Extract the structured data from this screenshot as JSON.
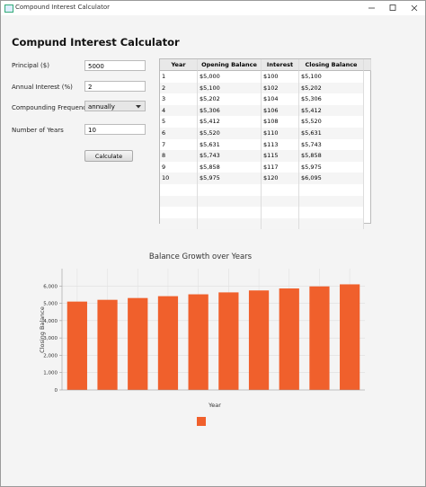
{
  "window": {
    "title": "Compound Interest Calculator"
  },
  "heading": "Compund Interest Calculator",
  "form": {
    "principal": {
      "label": "Principal ($)",
      "value": "5000"
    },
    "interest": {
      "label": "Annual Interest (%)",
      "value": "2"
    },
    "frequency": {
      "label": "Compounding Frequency:",
      "value": "annually"
    },
    "years": {
      "label": "Number of Years",
      "value": "10"
    },
    "button": "Calculate"
  },
  "table": {
    "columns": [
      "Year",
      "Opening Balance",
      "Interest",
      "Closing Balance"
    ],
    "rows": [
      [
        "1",
        "$5,000",
        "$100",
        "$5,100"
      ],
      [
        "2",
        "$5,100",
        "$102",
        "$5,202"
      ],
      [
        "3",
        "$5,202",
        "$104",
        "$5,306"
      ],
      [
        "4",
        "$5,306",
        "$106",
        "$5,412"
      ],
      [
        "5",
        "$5,412",
        "$108",
        "$5,520"
      ],
      [
        "6",
        "$5,520",
        "$110",
        "$5,631"
      ],
      [
        "7",
        "$5,631",
        "$113",
        "$5,743"
      ],
      [
        "8",
        "$5,743",
        "$115",
        "$5,858"
      ],
      [
        "9",
        "$5,858",
        "$117",
        "$5,975"
      ],
      [
        "10",
        "$5,975",
        "$120",
        "$6,095"
      ]
    ]
  },
  "chart_data": {
    "type": "bar",
    "title": "Balance Growth over Years",
    "x_label": "Year",
    "y_label": "Closing Balance",
    "categories": [
      null,
      null,
      null,
      null,
      null,
      null,
      null,
      null,
      null,
      null
    ],
    "values": [
      5100,
      5202,
      5306,
      5412,
      5520,
      5631,
      5743,
      5858,
      5975,
      6095
    ],
    "color": "#f0602c",
    "ylim": [
      0,
      7000
    ],
    "yticks": [
      0,
      {
        "value": 1000,
        "label": "1,000"
      },
      {
        "value": 2000,
        "label": "2,000"
      },
      {
        "value": 3000,
        "label": "3,000"
      },
      {
        "value": 4000,
        "label": "4,000"
      },
      {
        "value": 5000,
        "label": "5,000"
      },
      {
        "value": 6000,
        "label": "6,000"
      }
    ],
    "grid": true,
    "legend": "bottom"
  }
}
